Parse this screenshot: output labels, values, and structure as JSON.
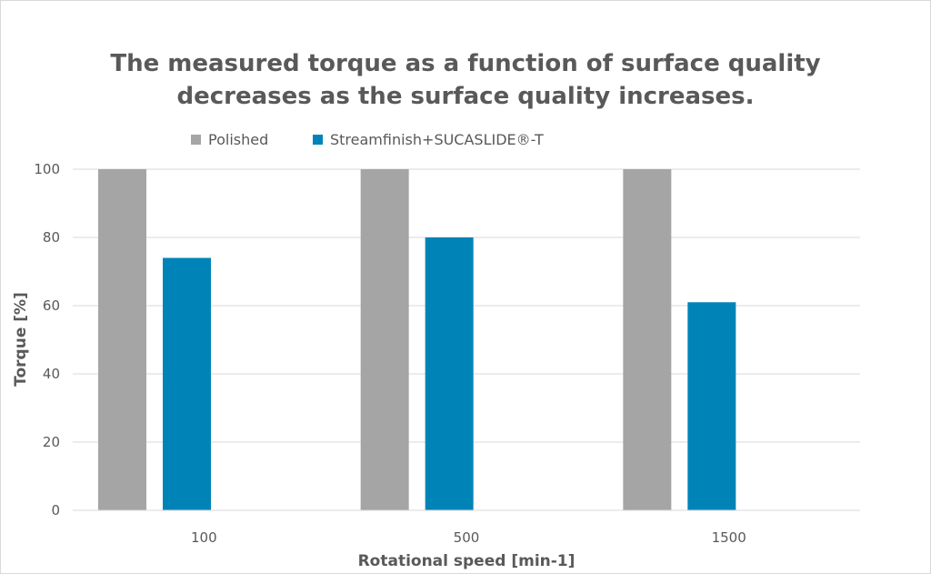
{
  "chart_data": {
    "type": "bar",
    "title_lines": [
      "The measured torque as a function of surface quality",
      "decreases as the surface quality increases."
    ],
    "categories": [
      "100",
      "500",
      "1500"
    ],
    "series": [
      {
        "name": "Polished",
        "values": [
          100,
          100,
          100
        ],
        "color": "#a5a5a5"
      },
      {
        "name": "Streamfinish+SUCASLIDE®-T",
        "values": [
          74,
          80,
          61
        ],
        "color": "#0084b7"
      }
    ],
    "xlabel": "Rotational speed [min-1]",
    "ylabel": "Torque [%]",
    "ylim": [
      0,
      100
    ],
    "yticks": [
      0,
      20,
      40,
      60,
      80,
      100
    ],
    "grid": true,
    "legend_position": "top"
  }
}
